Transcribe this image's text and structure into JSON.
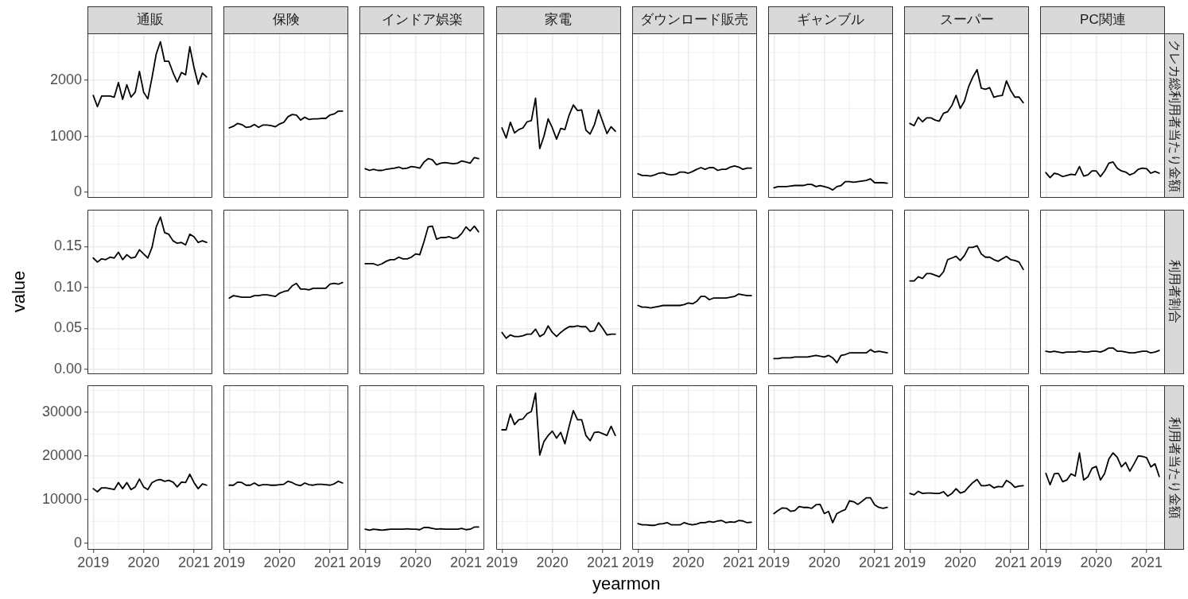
{
  "chart_data": [
    {
      "type": "line",
      "title": "通販",
      "x": [
        "2019-01",
        "2019-02",
        "2019-03",
        "2019-04",
        "2019-05",
        "2019-06",
        "2019-07",
        "2019-08",
        "2019-09",
        "2019-10",
        "2019-11",
        "2019-12",
        "2020-01",
        "2020-02",
        "2020-03",
        "2020-04",
        "2020-05",
        "2020-06",
        "2020-07",
        "2020-08",
        "2020-09",
        "2020-10",
        "2020-11",
        "2020-12",
        "2021-01",
        "2021-02",
        "2021-03",
        "2021-04"
      ],
      "values": [
        1730,
        1530,
        1720,
        1720,
        1720,
        1700,
        1960,
        1660,
        1920,
        1700,
        1790,
        2160,
        1790,
        1670,
        2050,
        2470,
        2690,
        2340,
        2340,
        2140,
        1970,
        2140,
        2100,
        2600,
        2230,
        1930,
        2130,
        2060
      ],
      "color": "#000000",
      "xlim": [
        "2018-11-20",
        "2021-05-12"
      ],
      "xticks": [
        "2019",
        "2020",
        "2021"
      ],
      "ylim": [
        -100,
        2840
      ],
      "yticks": [
        0,
        1000,
        2000
      ],
      "grid": true,
      "tick_labels": "y"
    },
    {
      "type": "line",
      "title": "保険",
      "x": [
        "2019-01",
        "2019-02",
        "2019-03",
        "2019-04",
        "2019-05",
        "2019-06",
        "2019-07",
        "2019-08",
        "2019-09",
        "2019-10",
        "2019-11",
        "2019-12",
        "2020-01",
        "2020-02",
        "2020-03",
        "2020-04",
        "2020-05",
        "2020-06",
        "2020-07",
        "2020-08",
        "2020-09",
        "2020-10",
        "2020-11",
        "2020-12",
        "2021-01",
        "2021-02",
        "2021-03",
        "2021-04"
      ],
      "values": [
        1150,
        1180,
        1230,
        1210,
        1160,
        1170,
        1210,
        1160,
        1200,
        1200,
        1190,
        1170,
        1220,
        1250,
        1350,
        1390,
        1380,
        1290,
        1340,
        1300,
        1310,
        1310,
        1320,
        1320,
        1380,
        1400,
        1450,
        1450
      ],
      "color": "#000000",
      "xlim": [
        "2018-11-20",
        "2021-05-12"
      ],
      "xticks": [
        "2019",
        "2020",
        "2021"
      ],
      "ylim": [
        -100,
        2840
      ],
      "yticks": [
        0,
        1000,
        2000
      ],
      "grid": true,
      "tick_labels": false
    },
    {
      "type": "line",
      "title": "インドア娯楽",
      "x": [
        "2019-01",
        "2019-02",
        "2019-03",
        "2019-04",
        "2019-05",
        "2019-06",
        "2019-07",
        "2019-08",
        "2019-09",
        "2019-10",
        "2019-11",
        "2019-12",
        "2020-01",
        "2020-02",
        "2020-03",
        "2020-04",
        "2020-05",
        "2020-06",
        "2020-07",
        "2020-08",
        "2020-09",
        "2020-10",
        "2020-11",
        "2020-12",
        "2021-01",
        "2021-02",
        "2021-03",
        "2021-04"
      ],
      "values": [
        420,
        390,
        410,
        390,
        390,
        410,
        420,
        430,
        450,
        420,
        430,
        460,
        450,
        430,
        540,
        600,
        580,
        490,
        520,
        530,
        520,
        510,
        520,
        560,
        540,
        520,
        620,
        600
      ],
      "color": "#000000",
      "xlim": [
        "2018-11-20",
        "2021-05-12"
      ],
      "xticks": [
        "2019",
        "2020",
        "2021"
      ],
      "ylim": [
        -100,
        2840
      ],
      "yticks": [
        0,
        1000,
        2000
      ],
      "grid": true,
      "tick_labels": false
    },
    {
      "type": "line",
      "title": "家電",
      "x": [
        "2019-01",
        "2019-02",
        "2019-03",
        "2019-04",
        "2019-05",
        "2019-06",
        "2019-07",
        "2019-08",
        "2019-09",
        "2019-10",
        "2019-11",
        "2019-12",
        "2020-01",
        "2020-02",
        "2020-03",
        "2020-04",
        "2020-05",
        "2020-06",
        "2020-07",
        "2020-08",
        "2020-09",
        "2020-10",
        "2020-11",
        "2020-12",
        "2021-01",
        "2021-02",
        "2021-03",
        "2021-04"
      ],
      "values": [
        1150,
        970,
        1250,
        1060,
        1120,
        1150,
        1260,
        1280,
        1680,
        780,
        1000,
        1310,
        1150,
        950,
        1140,
        1120,
        1380,
        1560,
        1460,
        1470,
        1110,
        1040,
        1200,
        1470,
        1260,
        1050,
        1170,
        1090
      ],
      "color": "#000000",
      "xlim": [
        "2018-11-20",
        "2021-05-12"
      ],
      "xticks": [
        "2019",
        "2020",
        "2021"
      ],
      "ylim": [
        -100,
        2840
      ],
      "yticks": [
        0,
        1000,
        2000
      ],
      "grid": true,
      "tick_labels": false
    },
    {
      "type": "line",
      "title": "ダウンロード販売",
      "x": [
        "2019-01",
        "2019-02",
        "2019-03",
        "2019-04",
        "2019-05",
        "2019-06",
        "2019-07",
        "2019-08",
        "2019-09",
        "2019-10",
        "2019-11",
        "2019-12",
        "2020-01",
        "2020-02",
        "2020-03",
        "2020-04",
        "2020-05",
        "2020-06",
        "2020-07",
        "2020-08",
        "2020-09",
        "2020-10",
        "2020-11",
        "2020-12",
        "2021-01",
        "2021-02",
        "2021-03",
        "2021-04"
      ],
      "values": [
        330,
        300,
        300,
        290,
        310,
        340,
        350,
        320,
        310,
        320,
        360,
        360,
        340,
        370,
        410,
        440,
        410,
        440,
        440,
        390,
        410,
        410,
        450,
        470,
        450,
        410,
        430,
        430
      ],
      "color": "#000000",
      "xlim": [
        "2018-11-20",
        "2021-05-12"
      ],
      "xticks": [
        "2019",
        "2020",
        "2021"
      ],
      "ylim": [
        -100,
        2840
      ],
      "yticks": [
        0,
        1000,
        2000
      ],
      "grid": true,
      "tick_labels": false
    },
    {
      "type": "line",
      "title": "ギャンブル",
      "x": [
        "2019-01",
        "2019-02",
        "2019-03",
        "2019-04",
        "2019-05",
        "2019-06",
        "2019-07",
        "2019-08",
        "2019-09",
        "2019-10",
        "2019-11",
        "2019-12",
        "2020-01",
        "2020-02",
        "2020-03",
        "2020-04",
        "2020-05",
        "2020-06",
        "2020-07",
        "2020-08",
        "2020-09",
        "2020-10",
        "2020-11",
        "2020-12",
        "2021-01",
        "2021-02",
        "2021-03",
        "2021-04"
      ],
      "values": [
        80,
        100,
        100,
        100,
        110,
        120,
        120,
        120,
        140,
        140,
        100,
        120,
        100,
        80,
        40,
        100,
        120,
        190,
        190,
        180,
        190,
        200,
        210,
        240,
        170,
        170,
        170,
        160
      ],
      "color": "#000000",
      "xlim": [
        "2018-11-20",
        "2021-05-12"
      ],
      "xticks": [
        "2019",
        "2020",
        "2021"
      ],
      "ylim": [
        -100,
        2840
      ],
      "yticks": [
        0,
        1000,
        2000
      ],
      "grid": true,
      "tick_labels": false
    },
    {
      "type": "line",
      "title": "スーパー",
      "x": [
        "2019-01",
        "2019-02",
        "2019-03",
        "2019-04",
        "2019-05",
        "2019-06",
        "2019-07",
        "2019-08",
        "2019-09",
        "2019-10",
        "2019-11",
        "2019-12",
        "2020-01",
        "2020-02",
        "2020-03",
        "2020-04",
        "2020-05",
        "2020-06",
        "2020-07",
        "2020-08",
        "2020-09",
        "2020-10",
        "2020-11",
        "2020-12",
        "2021-01",
        "2021-02",
        "2021-03",
        "2021-04"
      ],
      "values": [
        1230,
        1190,
        1340,
        1260,
        1330,
        1330,
        1290,
        1270,
        1410,
        1440,
        1550,
        1730,
        1500,
        1630,
        1890,
        2060,
        2190,
        1860,
        1840,
        1870,
        1700,
        1720,
        1730,
        1990,
        1820,
        1700,
        1700,
        1600
      ],
      "color": "#000000",
      "xlim": [
        "2018-11-20",
        "2021-05-12"
      ],
      "xticks": [
        "2019",
        "2020",
        "2021"
      ],
      "ylim": [
        -100,
        2840
      ],
      "yticks": [
        0,
        1000,
        2000
      ],
      "grid": true,
      "tick_labels": false
    },
    {
      "type": "line",
      "title": "PC関連",
      "y2label": "クレカ総利用者当たり金額",
      "x": [
        "2019-01",
        "2019-02",
        "2019-03",
        "2019-04",
        "2019-05",
        "2019-06",
        "2019-07",
        "2019-08",
        "2019-09",
        "2019-10",
        "2019-11",
        "2019-12",
        "2020-01",
        "2020-02",
        "2020-03",
        "2020-04",
        "2020-05",
        "2020-06",
        "2020-07",
        "2020-08",
        "2020-09",
        "2020-10",
        "2020-11",
        "2020-12",
        "2021-01",
        "2021-02",
        "2021-03",
        "2021-04"
      ],
      "values": [
        350,
        260,
        340,
        320,
        280,
        300,
        320,
        310,
        460,
        290,
        310,
        380,
        380,
        280,
        380,
        520,
        540,
        430,
        380,
        360,
        310,
        340,
        410,
        430,
        420,
        340,
        370,
        340
      ],
      "color": "#000000",
      "xlim": [
        "2018-11-20",
        "2021-05-12"
      ],
      "xticks": [
        "2019",
        "2020",
        "2021"
      ],
      "ylim": [
        -100,
        2840
      ],
      "yticks": [
        0,
        1000,
        2000
      ],
      "grid": true,
      "tick_labels": false
    },
    {
      "type": "line",
      "ylabel": "value",
      "x": [
        "2019-01",
        "2019-02",
        "2019-03",
        "2019-04",
        "2019-05",
        "2019-06",
        "2019-07",
        "2019-08",
        "2019-09",
        "2019-10",
        "2019-11",
        "2019-12",
        "2020-01",
        "2020-02",
        "2020-03",
        "2020-04",
        "2020-05",
        "2020-06",
        "2020-07",
        "2020-08",
        "2020-09",
        "2020-10",
        "2020-11",
        "2020-12",
        "2021-01",
        "2021-02",
        "2021-03",
        "2021-04"
      ],
      "values": [
        0.136,
        0.131,
        0.135,
        0.134,
        0.137,
        0.136,
        0.143,
        0.134,
        0.14,
        0.136,
        0.137,
        0.146,
        0.141,
        0.136,
        0.149,
        0.174,
        0.186,
        0.167,
        0.165,
        0.157,
        0.154,
        0.155,
        0.152,
        0.165,
        0.162,
        0.155,
        0.157,
        0.155
      ],
      "color": "#000000",
      "xlim": [
        "2018-11-20",
        "2021-05-12"
      ],
      "xticks": [
        "2019",
        "2020",
        "2021"
      ],
      "ylim": [
        -0.006,
        0.195
      ],
      "yticks": [
        {
          "value": 0,
          "label": "0.00"
        },
        0.05,
        {
          "value": 0.1,
          "label": "0.10"
        },
        0.15
      ],
      "grid": true,
      "tick_labels": "y"
    },
    {
      "type": "line",
      "x": [
        "2019-01",
        "2019-02",
        "2019-03",
        "2019-04",
        "2019-05",
        "2019-06",
        "2019-07",
        "2019-08",
        "2019-09",
        "2019-10",
        "2019-11",
        "2019-12",
        "2020-01",
        "2020-02",
        "2020-03",
        "2020-04",
        "2020-05",
        "2020-06",
        "2020-07",
        "2020-08",
        "2020-09",
        "2020-10",
        "2020-11",
        "2020-12",
        "2021-01",
        "2021-02",
        "2021-03",
        "2021-04"
      ],
      "values": [
        0.087,
        0.09,
        0.089,
        0.088,
        0.088,
        0.088,
        0.09,
        0.09,
        0.091,
        0.091,
        0.09,
        0.089,
        0.093,
        0.095,
        0.096,
        0.102,
        0.105,
        0.098,
        0.098,
        0.097,
        0.099,
        0.099,
        0.099,
        0.099,
        0.104,
        0.105,
        0.104,
        0.106
      ],
      "color": "#000000",
      "xlim": [
        "2018-11-20",
        "2021-05-12"
      ],
      "xticks": [
        "2019",
        "2020",
        "2021"
      ],
      "ylim": [
        -0.006,
        0.195
      ],
      "yticks": [
        0,
        0.05,
        0.1,
        0.15
      ],
      "grid": true,
      "tick_labels": false
    },
    {
      "type": "line",
      "x": [
        "2019-01",
        "2019-02",
        "2019-03",
        "2019-04",
        "2019-05",
        "2019-06",
        "2019-07",
        "2019-08",
        "2019-09",
        "2019-10",
        "2019-11",
        "2019-12",
        "2020-01",
        "2020-02",
        "2020-03",
        "2020-04",
        "2020-05",
        "2020-06",
        "2020-07",
        "2020-08",
        "2020-09",
        "2020-10",
        "2020-11",
        "2020-12",
        "2021-01",
        "2021-02",
        "2021-03",
        "2021-04"
      ],
      "values": [
        0.129,
        0.129,
        0.129,
        0.127,
        0.129,
        0.132,
        0.134,
        0.134,
        0.137,
        0.135,
        0.135,
        0.137,
        0.141,
        0.14,
        0.156,
        0.174,
        0.175,
        0.159,
        0.161,
        0.161,
        0.162,
        0.16,
        0.161,
        0.166,
        0.174,
        0.169,
        0.175,
        0.168
      ],
      "color": "#000000",
      "xlim": [
        "2018-11-20",
        "2021-05-12"
      ],
      "xticks": [
        "2019",
        "2020",
        "2021"
      ],
      "ylim": [
        -0.006,
        0.195
      ],
      "yticks": [
        0,
        0.05,
        0.1,
        0.15
      ],
      "grid": true,
      "tick_labels": false
    },
    {
      "type": "line",
      "x": [
        "2019-01",
        "2019-02",
        "2019-03",
        "2019-04",
        "2019-05",
        "2019-06",
        "2019-07",
        "2019-08",
        "2019-09",
        "2019-10",
        "2019-11",
        "2019-12",
        "2020-01",
        "2020-02",
        "2020-03",
        "2020-04",
        "2020-05",
        "2020-06",
        "2020-07",
        "2020-08",
        "2020-09",
        "2020-10",
        "2020-11",
        "2020-12",
        "2021-01",
        "2021-02",
        "2021-03",
        "2021-04"
      ],
      "values": [
        0.045,
        0.038,
        0.042,
        0.04,
        0.04,
        0.041,
        0.043,
        0.043,
        0.049,
        0.04,
        0.043,
        0.053,
        0.045,
        0.04,
        0.045,
        0.049,
        0.052,
        0.052,
        0.053,
        0.052,
        0.052,
        0.046,
        0.047,
        0.057,
        0.05,
        0.042,
        0.043,
        0.043
      ],
      "color": "#000000",
      "xlim": [
        "2018-11-20",
        "2021-05-12"
      ],
      "xticks": [
        "2019",
        "2020",
        "2021"
      ],
      "ylim": [
        -0.006,
        0.195
      ],
      "yticks": [
        0,
        0.05,
        0.1,
        0.15
      ],
      "grid": true,
      "tick_labels": false
    },
    {
      "type": "line",
      "x": [
        "2019-01",
        "2019-02",
        "2019-03",
        "2019-04",
        "2019-05",
        "2019-06",
        "2019-07",
        "2019-08",
        "2019-09",
        "2019-10",
        "2019-11",
        "2019-12",
        "2020-01",
        "2020-02",
        "2020-03",
        "2020-04",
        "2020-05",
        "2020-06",
        "2020-07",
        "2020-08",
        "2020-09",
        "2020-10",
        "2020-11",
        "2020-12",
        "2021-01",
        "2021-02",
        "2021-03",
        "2021-04"
      ],
      "values": [
        0.078,
        0.076,
        0.076,
        0.075,
        0.076,
        0.077,
        0.078,
        0.078,
        0.078,
        0.078,
        0.078,
        0.079,
        0.081,
        0.08,
        0.083,
        0.089,
        0.089,
        0.085,
        0.087,
        0.087,
        0.087,
        0.087,
        0.088,
        0.089,
        0.092,
        0.091,
        0.09,
        0.09
      ],
      "color": "#000000",
      "xlim": [
        "2018-11-20",
        "2021-05-12"
      ],
      "xticks": [
        "2019",
        "2020",
        "2021"
      ],
      "ylim": [
        -0.006,
        0.195
      ],
      "yticks": [
        0,
        0.05,
        0.1,
        0.15
      ],
      "grid": true,
      "tick_labels": false
    },
    {
      "type": "line",
      "x": [
        "2019-01",
        "2019-02",
        "2019-03",
        "2019-04",
        "2019-05",
        "2019-06",
        "2019-07",
        "2019-08",
        "2019-09",
        "2019-10",
        "2019-11",
        "2019-12",
        "2020-01",
        "2020-02",
        "2020-03",
        "2020-04",
        "2020-05",
        "2020-06",
        "2020-07",
        "2020-08",
        "2020-09",
        "2020-10",
        "2020-11",
        "2020-12",
        "2021-01",
        "2021-02",
        "2021-03",
        "2021-04"
      ],
      "values": [
        0.013,
        0.013,
        0.014,
        0.014,
        0.014,
        0.015,
        0.015,
        0.015,
        0.015,
        0.016,
        0.017,
        0.016,
        0.015,
        0.017,
        0.014,
        0.008,
        0.017,
        0.018,
        0.02,
        0.02,
        0.02,
        0.02,
        0.02,
        0.024,
        0.021,
        0.022,
        0.021,
        0.02
      ],
      "color": "#000000",
      "xlim": [
        "2018-11-20",
        "2021-05-12"
      ],
      "xticks": [
        "2019",
        "2020",
        "2021"
      ],
      "ylim": [
        -0.006,
        0.195
      ],
      "yticks": [
        0,
        0.05,
        0.1,
        0.15
      ],
      "grid": true,
      "tick_labels": false
    },
    {
      "type": "line",
      "x": [
        "2019-01",
        "2019-02",
        "2019-03",
        "2019-04",
        "2019-05",
        "2019-06",
        "2019-07",
        "2019-08",
        "2019-09",
        "2019-10",
        "2019-11",
        "2019-12",
        "2020-01",
        "2020-02",
        "2020-03",
        "2020-04",
        "2020-05",
        "2020-06",
        "2020-07",
        "2020-08",
        "2020-09",
        "2020-10",
        "2020-11",
        "2020-12",
        "2021-01",
        "2021-02",
        "2021-03",
        "2021-04"
      ],
      "values": [
        0.108,
        0.108,
        0.113,
        0.111,
        0.117,
        0.117,
        0.115,
        0.113,
        0.119,
        0.134,
        0.136,
        0.138,
        0.133,
        0.139,
        0.149,
        0.149,
        0.151,
        0.141,
        0.137,
        0.137,
        0.134,
        0.132,
        0.135,
        0.138,
        0.134,
        0.133,
        0.131,
        0.122
      ],
      "color": "#000000",
      "xlim": [
        "2018-11-20",
        "2021-05-12"
      ],
      "xticks": [
        "2019",
        "2020",
        "2021"
      ],
      "ylim": [
        -0.006,
        0.195
      ],
      "yticks": [
        0,
        0.05,
        0.1,
        0.15
      ],
      "grid": true,
      "tick_labels": false
    },
    {
      "type": "line",
      "y2label": "利用者割合",
      "x": [
        "2019-01",
        "2019-02",
        "2019-03",
        "2019-04",
        "2019-05",
        "2019-06",
        "2019-07",
        "2019-08",
        "2019-09",
        "2019-10",
        "2019-11",
        "2019-12",
        "2020-01",
        "2020-02",
        "2020-03",
        "2020-04",
        "2020-05",
        "2020-06",
        "2020-07",
        "2020-08",
        "2020-09",
        "2020-10",
        "2020-11",
        "2020-12",
        "2021-01",
        "2021-02",
        "2021-03",
        "2021-04"
      ],
      "values": [
        0.022,
        0.021,
        0.022,
        0.021,
        0.02,
        0.021,
        0.021,
        0.021,
        0.022,
        0.021,
        0.021,
        0.022,
        0.022,
        0.021,
        0.023,
        0.026,
        0.026,
        0.022,
        0.022,
        0.021,
        0.02,
        0.02,
        0.021,
        0.022,
        0.022,
        0.02,
        0.021,
        0.023
      ],
      "color": "#000000",
      "xlim": [
        "2018-11-20",
        "2021-05-12"
      ],
      "xticks": [
        "2019",
        "2020",
        "2021"
      ],
      "ylim": [
        -0.006,
        0.195
      ],
      "yticks": [
        0,
        0.05,
        0.1,
        0.15
      ],
      "grid": true,
      "tick_labels": false
    },
    {
      "type": "line",
      "x": [
        "2019-01",
        "2019-02",
        "2019-03",
        "2019-04",
        "2019-05",
        "2019-06",
        "2019-07",
        "2019-08",
        "2019-09",
        "2019-10",
        "2019-11",
        "2019-12",
        "2020-01",
        "2020-02",
        "2020-03",
        "2020-04",
        "2020-05",
        "2020-06",
        "2020-07",
        "2020-08",
        "2020-09",
        "2020-10",
        "2020-11",
        "2020-12",
        "2021-01",
        "2021-02",
        "2021-03",
        "2021-04"
      ],
      "values": [
        12500,
        11800,
        12700,
        12700,
        12500,
        12300,
        13900,
        12500,
        13900,
        12300,
        12900,
        14700,
        12900,
        12300,
        13900,
        14400,
        14600,
        14200,
        14400,
        14000,
        12900,
        14000,
        13900,
        15800,
        13900,
        12500,
        13600,
        13300
      ],
      "color": "#000000",
      "xlim": [
        "2018-11-20",
        "2021-05-12"
      ],
      "xticks": [
        "2019",
        "2020",
        "2021"
      ],
      "ylim": [
        -1500,
        36200
      ],
      "yticks": [
        0,
        10000,
        20000,
        30000
      ],
      "grid": true
    },
    {
      "type": "line",
      "x": [
        "2019-01",
        "2019-02",
        "2019-03",
        "2019-04",
        "2019-05",
        "2019-06",
        "2019-07",
        "2019-08",
        "2019-09",
        "2019-10",
        "2019-11",
        "2019-12",
        "2020-01",
        "2020-02",
        "2020-03",
        "2020-04",
        "2020-05",
        "2020-06",
        "2020-07",
        "2020-08",
        "2020-09",
        "2020-10",
        "2020-11",
        "2020-12",
        "2021-01",
        "2021-02",
        "2021-03",
        "2021-04"
      ],
      "values": [
        13300,
        13300,
        14000,
        13900,
        13300,
        13300,
        13800,
        13200,
        13400,
        13400,
        13300,
        13300,
        13400,
        13500,
        14200,
        13900,
        13400,
        13200,
        13800,
        13400,
        13300,
        13500,
        13500,
        13400,
        13300,
        13600,
        14200,
        13800
      ],
      "color": "#000000",
      "xlim": [
        "2018-11-20",
        "2021-05-12"
      ],
      "xticks": [
        "2019",
        "2020",
        "2021"
      ],
      "ylim": [
        -1500,
        36200
      ],
      "yticks": [
        0,
        10000,
        20000,
        30000
      ],
      "grid": true,
      "tick_labels": "x"
    },
    {
      "type": "line",
      "x": [
        "2019-01",
        "2019-02",
        "2019-03",
        "2019-04",
        "2019-05",
        "2019-06",
        "2019-07",
        "2019-08",
        "2019-09",
        "2019-10",
        "2019-11",
        "2019-12",
        "2020-01",
        "2020-02",
        "2020-03",
        "2020-04",
        "2020-05",
        "2020-06",
        "2020-07",
        "2020-08",
        "2020-09",
        "2020-10",
        "2020-11",
        "2020-12",
        "2021-01",
        "2021-02",
        "2021-03",
        "2021-04"
      ],
      "values": [
        3200,
        3000,
        3200,
        3100,
        3000,
        3100,
        3200,
        3200,
        3200,
        3200,
        3300,
        3200,
        3200,
        3100,
        3600,
        3600,
        3400,
        3200,
        3300,
        3200,
        3200,
        3200,
        3200,
        3400,
        3100,
        3200,
        3700,
        3700
      ],
      "color": "#000000",
      "xlim": [
        "2018-11-20",
        "2021-05-12"
      ],
      "xticks": [
        "2019",
        "2020",
        "2021"
      ],
      "ylim": [
        -1500,
        36200
      ],
      "yticks": [
        0,
        10000,
        20000,
        30000
      ],
      "grid": true,
      "tick_labels": "x"
    },
    {
      "type": "line",
      "xlabel": "yearmon",
      "x": [
        "2019-01",
        "2019-02",
        "2019-03",
        "2019-04",
        "2019-05",
        "2019-06",
        "2019-07",
        "2019-08",
        "2019-09",
        "2019-10",
        "2019-11",
        "2019-12",
        "2020-01",
        "2020-02",
        "2020-03",
        "2020-04",
        "2020-05",
        "2020-06",
        "2020-07",
        "2020-08",
        "2020-09",
        "2020-10",
        "2020-11",
        "2020-12",
        "2021-01",
        "2021-02",
        "2021-03",
        "2021-04"
      ],
      "values": [
        26000,
        26000,
        29600,
        27200,
        28300,
        28500,
        29700,
        30200,
        34400,
        20200,
        23300,
        24700,
        25700,
        24100,
        25400,
        22800,
        26800,
        30400,
        28300,
        28300,
        24700,
        23500,
        25400,
        25500,
        25100,
        24700,
        26800,
        24700
      ],
      "color": "#000000",
      "xlim": [
        "2018-11-20",
        "2021-05-12"
      ],
      "xticks": [
        "2019",
        "2020",
        "2021"
      ],
      "ylim": [
        -1500,
        36200
      ],
      "yticks": [
        0,
        10000,
        20000,
        30000
      ],
      "grid": true,
      "tick_labels": "x"
    },
    {
      "type": "line",
      "x": [
        "2019-01",
        "2019-02",
        "2019-03",
        "2019-04",
        "2019-05",
        "2019-06",
        "2019-07",
        "2019-08",
        "2019-09",
        "2019-10",
        "2019-11",
        "2019-12",
        "2020-01",
        "2020-02",
        "2020-03",
        "2020-04",
        "2020-05",
        "2020-06",
        "2020-07",
        "2020-08",
        "2020-09",
        "2020-10",
        "2020-11",
        "2020-12",
        "2021-01",
        "2021-02",
        "2021-03",
        "2021-04"
      ],
      "values": [
        4500,
        4200,
        4200,
        4100,
        4100,
        4400,
        4500,
        4700,
        4200,
        4200,
        4200,
        4700,
        4400,
        4200,
        4400,
        4700,
        4700,
        5000,
        4800,
        5100,
        5200,
        4700,
        4900,
        4800,
        5200,
        5100,
        4700,
        4800
      ],
      "color": "#000000",
      "xlim": [
        "2018-11-20",
        "2021-05-12"
      ],
      "xticks": [
        "2019",
        "2020",
        "2021"
      ],
      "ylim": [
        -1500,
        36200
      ],
      "yticks": [
        0,
        10000,
        20000,
        30000
      ],
      "grid": true,
      "tick_labels": "x"
    },
    {
      "type": "line",
      "x": [
        "2019-01",
        "2019-02",
        "2019-03",
        "2019-04",
        "2019-05",
        "2019-06",
        "2019-07",
        "2019-08",
        "2019-09",
        "2019-10",
        "2019-11",
        "2019-12",
        "2020-01",
        "2020-02",
        "2020-03",
        "2020-04",
        "2020-05",
        "2020-06",
        "2020-07",
        "2020-08",
        "2020-09",
        "2020-10",
        "2020-11",
        "2020-12",
        "2021-01",
        "2021-02",
        "2021-03",
        "2021-04"
      ],
      "values": [
        6800,
        7500,
        8100,
        8000,
        7300,
        7500,
        8400,
        8200,
        8200,
        8000,
        8800,
        8900,
        6800,
        7300,
        4700,
        6800,
        7300,
        7700,
        9700,
        9500,
        8900,
        9600,
        10400,
        10400,
        8800,
        8200,
        8000,
        8200
      ],
      "color": "#000000",
      "xlim": [
        "2018-11-20",
        "2021-05-12"
      ],
      "xticks": [
        "2019",
        "2020",
        "2021"
      ],
      "ylim": [
        -1500,
        36200
      ],
      "yticks": [
        0,
        10000,
        20000,
        30000
      ],
      "grid": true,
      "tick_labels": "x"
    },
    {
      "type": "line",
      "x": [
        "2019-01",
        "2019-02",
        "2019-03",
        "2019-04",
        "2019-05",
        "2019-06",
        "2019-07",
        "2019-08",
        "2019-09",
        "2019-10",
        "2019-11",
        "2019-12",
        "2020-01",
        "2020-02",
        "2020-03",
        "2020-04",
        "2020-05",
        "2020-06",
        "2020-07",
        "2020-08",
        "2020-09",
        "2020-10",
        "2020-11",
        "2020-12",
        "2021-01",
        "2021-02",
        "2021-03",
        "2021-04"
      ],
      "values": [
        11400,
        11100,
        11900,
        11400,
        11500,
        11500,
        11400,
        11400,
        11800,
        10800,
        11400,
        12500,
        11500,
        11800,
        12900,
        13900,
        14600,
        13200,
        13200,
        13400,
        12700,
        13000,
        12900,
        14400,
        13800,
        12800,
        13100,
        13200
      ],
      "color": "#000000",
      "xlim": [
        "2018-11-20",
        "2021-05-12"
      ],
      "xticks": [
        "2019",
        "2020",
        "2021"
      ],
      "ylim": [
        -1500,
        36200
      ],
      "yticks": [
        0,
        10000,
        20000,
        30000
      ],
      "grid": true,
      "tick_labels": "x"
    },
    {
      "type": "line",
      "y2label": "利用者当たり金額",
      "x": [
        "2019-01",
        "2019-02",
        "2019-03",
        "2019-04",
        "2019-05",
        "2019-06",
        "2019-07",
        "2019-08",
        "2019-09",
        "2019-10",
        "2019-11",
        "2019-12",
        "2020-01",
        "2020-02",
        "2020-03",
        "2020-04",
        "2020-05",
        "2020-06",
        "2020-07",
        "2020-08",
        "2020-09",
        "2020-10",
        "2020-11",
        "2020-12",
        "2021-01",
        "2021-02",
        "2021-03",
        "2021-04"
      ],
      "values": [
        16000,
        13400,
        15900,
        16000,
        14100,
        14500,
        15900,
        15400,
        20700,
        14500,
        15200,
        17200,
        17600,
        14500,
        16000,
        19300,
        20700,
        19700,
        17500,
        18500,
        16500,
        18200,
        20000,
        19900,
        19600,
        17500,
        18200,
        15300
      ],
      "color": "#000000",
      "xlim": [
        "2018-11-20",
        "2021-05-12"
      ],
      "xticks": [
        "2019",
        "2020",
        "2021"
      ],
      "ylim": [
        -1500,
        36200
      ],
      "yticks": [
        0,
        10000,
        20000,
        30000
      ],
      "grid": true,
      "tick_labels": "x"
    }
  ]
}
